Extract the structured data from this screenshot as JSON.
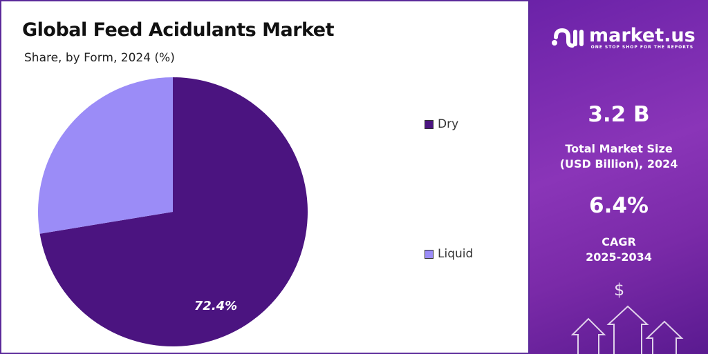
{
  "chart_data": {
    "type": "pie",
    "title": "Global Feed Acidulants Market",
    "subtitle": "Share, by Form, 2024 (%)",
    "categories": [
      "Dry",
      "Liquid"
    ],
    "values": [
      72.4,
      27.6
    ],
    "colors": [
      "#4b1480",
      "#9b8cf7"
    ],
    "data_labels": [
      "72.4%",
      ""
    ],
    "legend": "right"
  },
  "sidebar": {
    "brand": "market.us",
    "tagline": "ONE STOP SHOP FOR THE REPORTS",
    "market_size": "3.2 B",
    "market_size_label_1": "Total Market Size",
    "market_size_label_2": "(USD Billion), 2024",
    "cagr": "6.4%",
    "cagr_label_1": "CAGR",
    "cagr_label_2": "2025-2034",
    "dollar": "$"
  }
}
